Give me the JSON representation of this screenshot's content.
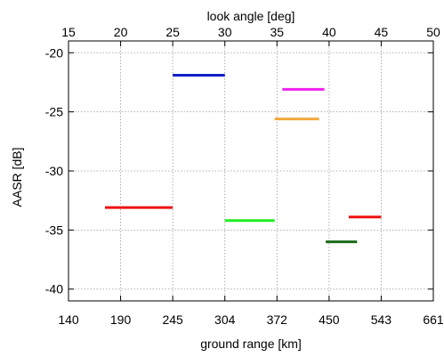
{
  "chart_data": {
    "type": "line",
    "title": "",
    "xlabel": "ground range [km]",
    "x2label": "look angle [deg]",
    "ylabel": "AASR [dB]",
    "xlim": [
      0,
      12
    ],
    "ylim": [
      -41,
      -19
    ],
    "grid": true,
    "x_ticks": [
      {
        "x": 0,
        "label": "140"
      },
      {
        "x": 1,
        "label": "190"
      },
      {
        "x": 2,
        "label": "245"
      },
      {
        "x": 3,
        "label": "304"
      },
      {
        "x": 4,
        "label": "372"
      },
      {
        "x": 5,
        "label": "450"
      },
      {
        "x": 6,
        "label": "543"
      },
      {
        "x": 7,
        "label": "661"
      }
    ],
    "x2_ticks": [
      {
        "x": 15,
        "label": "15"
      },
      {
        "x": 20,
        "label": "20"
      },
      {
        "x": 25,
        "label": "25"
      },
      {
        "x": 30,
        "label": "30"
      },
      {
        "x": 35,
        "label": "35"
      },
      {
        "x": 40,
        "label": "40"
      },
      {
        "x": 45,
        "label": "45"
      },
      {
        "x": 50,
        "label": "50"
      }
    ],
    "y_ticks": [
      -20,
      -25,
      -30,
      -35,
      -40
    ],
    "series": [
      {
        "color": "#ee1111",
        "x": [
          175,
          245
        ],
        "y": [
          -33.1,
          -33.1
        ]
      },
      {
        "color": "#1020c8",
        "x": [
          245,
          304
        ],
        "y": [
          -21.9,
          -21.9
        ]
      },
      {
        "color": "#22ee22",
        "x": [
          304,
          369
        ],
        "y": [
          -34.2,
          -34.2
        ]
      },
      {
        "color": "#f2a83a",
        "x": [
          369,
          435
        ],
        "y": [
          -25.6,
          -25.6
        ]
      },
      {
        "color": "#ee22ee",
        "x": [
          380,
          443
        ],
        "y": [
          -23.1,
          -23.1
        ]
      },
      {
        "color": "#1a6a1a",
        "x": [
          445,
          500
        ],
        "y": [
          -36.0,
          -36.0
        ]
      },
      {
        "color": "#ee1111",
        "x": [
          485,
          543
        ],
        "y": [
          -33.9,
          -33.9
        ]
      }
    ]
  }
}
